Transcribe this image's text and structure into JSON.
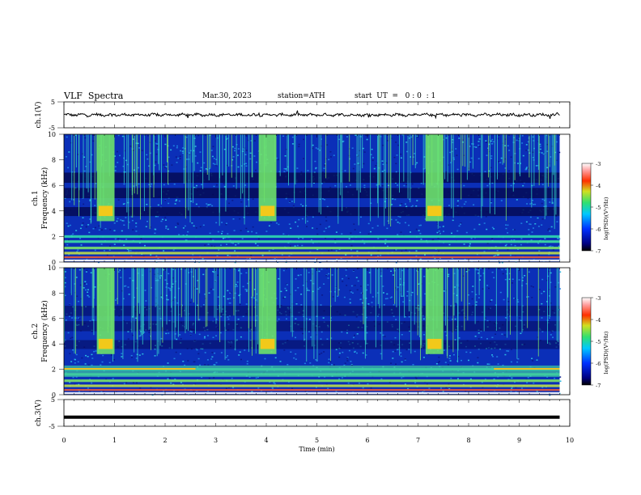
{
  "header": {
    "title": "VLF  Spectra",
    "date": "Mar.30, 2023",
    "station": "station=ATH",
    "start_ut": "start  UT  =   0 : 0  : 1"
  },
  "chart_data": [
    {
      "type": "line",
      "panel": "ch1-waveform",
      "ylabel": "ch.1(V)",
      "ylim": [
        -5,
        5
      ],
      "yticks": [
        "5",
        "-5"
      ],
      "xlim": [
        0,
        10
      ],
      "series": [
        {
          "values_note_free": true,
          "level": 0
        }
      ]
    },
    {
      "type": "heatmap",
      "panel": "ch1-spectrogram",
      "ylabel": "ch.1\nFrequency (kHz)",
      "ylabel_lines": [
        "ch.1",
        "Frequency  (kHz)"
      ],
      "ylim": [
        0,
        10
      ],
      "yticks": [
        "0",
        "2",
        "4",
        "6",
        "8",
        "10"
      ],
      "xlim": [
        0,
        10
      ],
      "bursts_min": [
        [
          0.65,
          1.0
        ],
        [
          3.85,
          4.2
        ],
        [
          7.15,
          7.5
        ]
      ],
      "colorbar": {
        "label": "log(PSD)(V²/Hz)",
        "range": [
          -7,
          -3
        ],
        "ticks": [
          "-3",
          "-4",
          "-5",
          "-6",
          "-7"
        ]
      }
    },
    {
      "type": "heatmap",
      "panel": "ch2-spectrogram",
      "ylabel_lines": [
        "ch.2",
        "Frequency  (kHz)"
      ],
      "ylim": [
        0,
        10
      ],
      "yticks": [
        "0",
        "2",
        "4",
        "6",
        "8",
        "10"
      ],
      "xlim": [
        0,
        10
      ],
      "bursts_min": [
        [
          0.65,
          1.0
        ],
        [
          3.85,
          4.2
        ],
        [
          7.15,
          7.5
        ]
      ],
      "colorbar": {
        "label": "log(PSD)(V²/Hz)",
        "range": [
          -7,
          -3
        ],
        "ticks": [
          "-3",
          "-4",
          "-5",
          "-6",
          "-7"
        ]
      }
    },
    {
      "type": "line",
      "panel": "ch3-waveform",
      "ylabel": "ch.3(V)",
      "ylim": [
        -5,
        5
      ],
      "yticks": [
        "5",
        "-5"
      ],
      "xlim": [
        0,
        10
      ],
      "series": [
        {
          "level": -1.6
        }
      ]
    }
  ],
  "xaxis": {
    "label": "Time  (min)",
    "ticks": [
      "0",
      "1",
      "2",
      "3",
      "4",
      "5",
      "6",
      "7",
      "8",
      "9",
      "10"
    ],
    "data_end_min": 9.8
  },
  "colors": {
    "spectro_bg": "#0b2fb8",
    "band_dark": "#050a55",
    "burst": "#6ee26a",
    "burst_core": "#f2c91a",
    "streak": "#35d6c8"
  }
}
